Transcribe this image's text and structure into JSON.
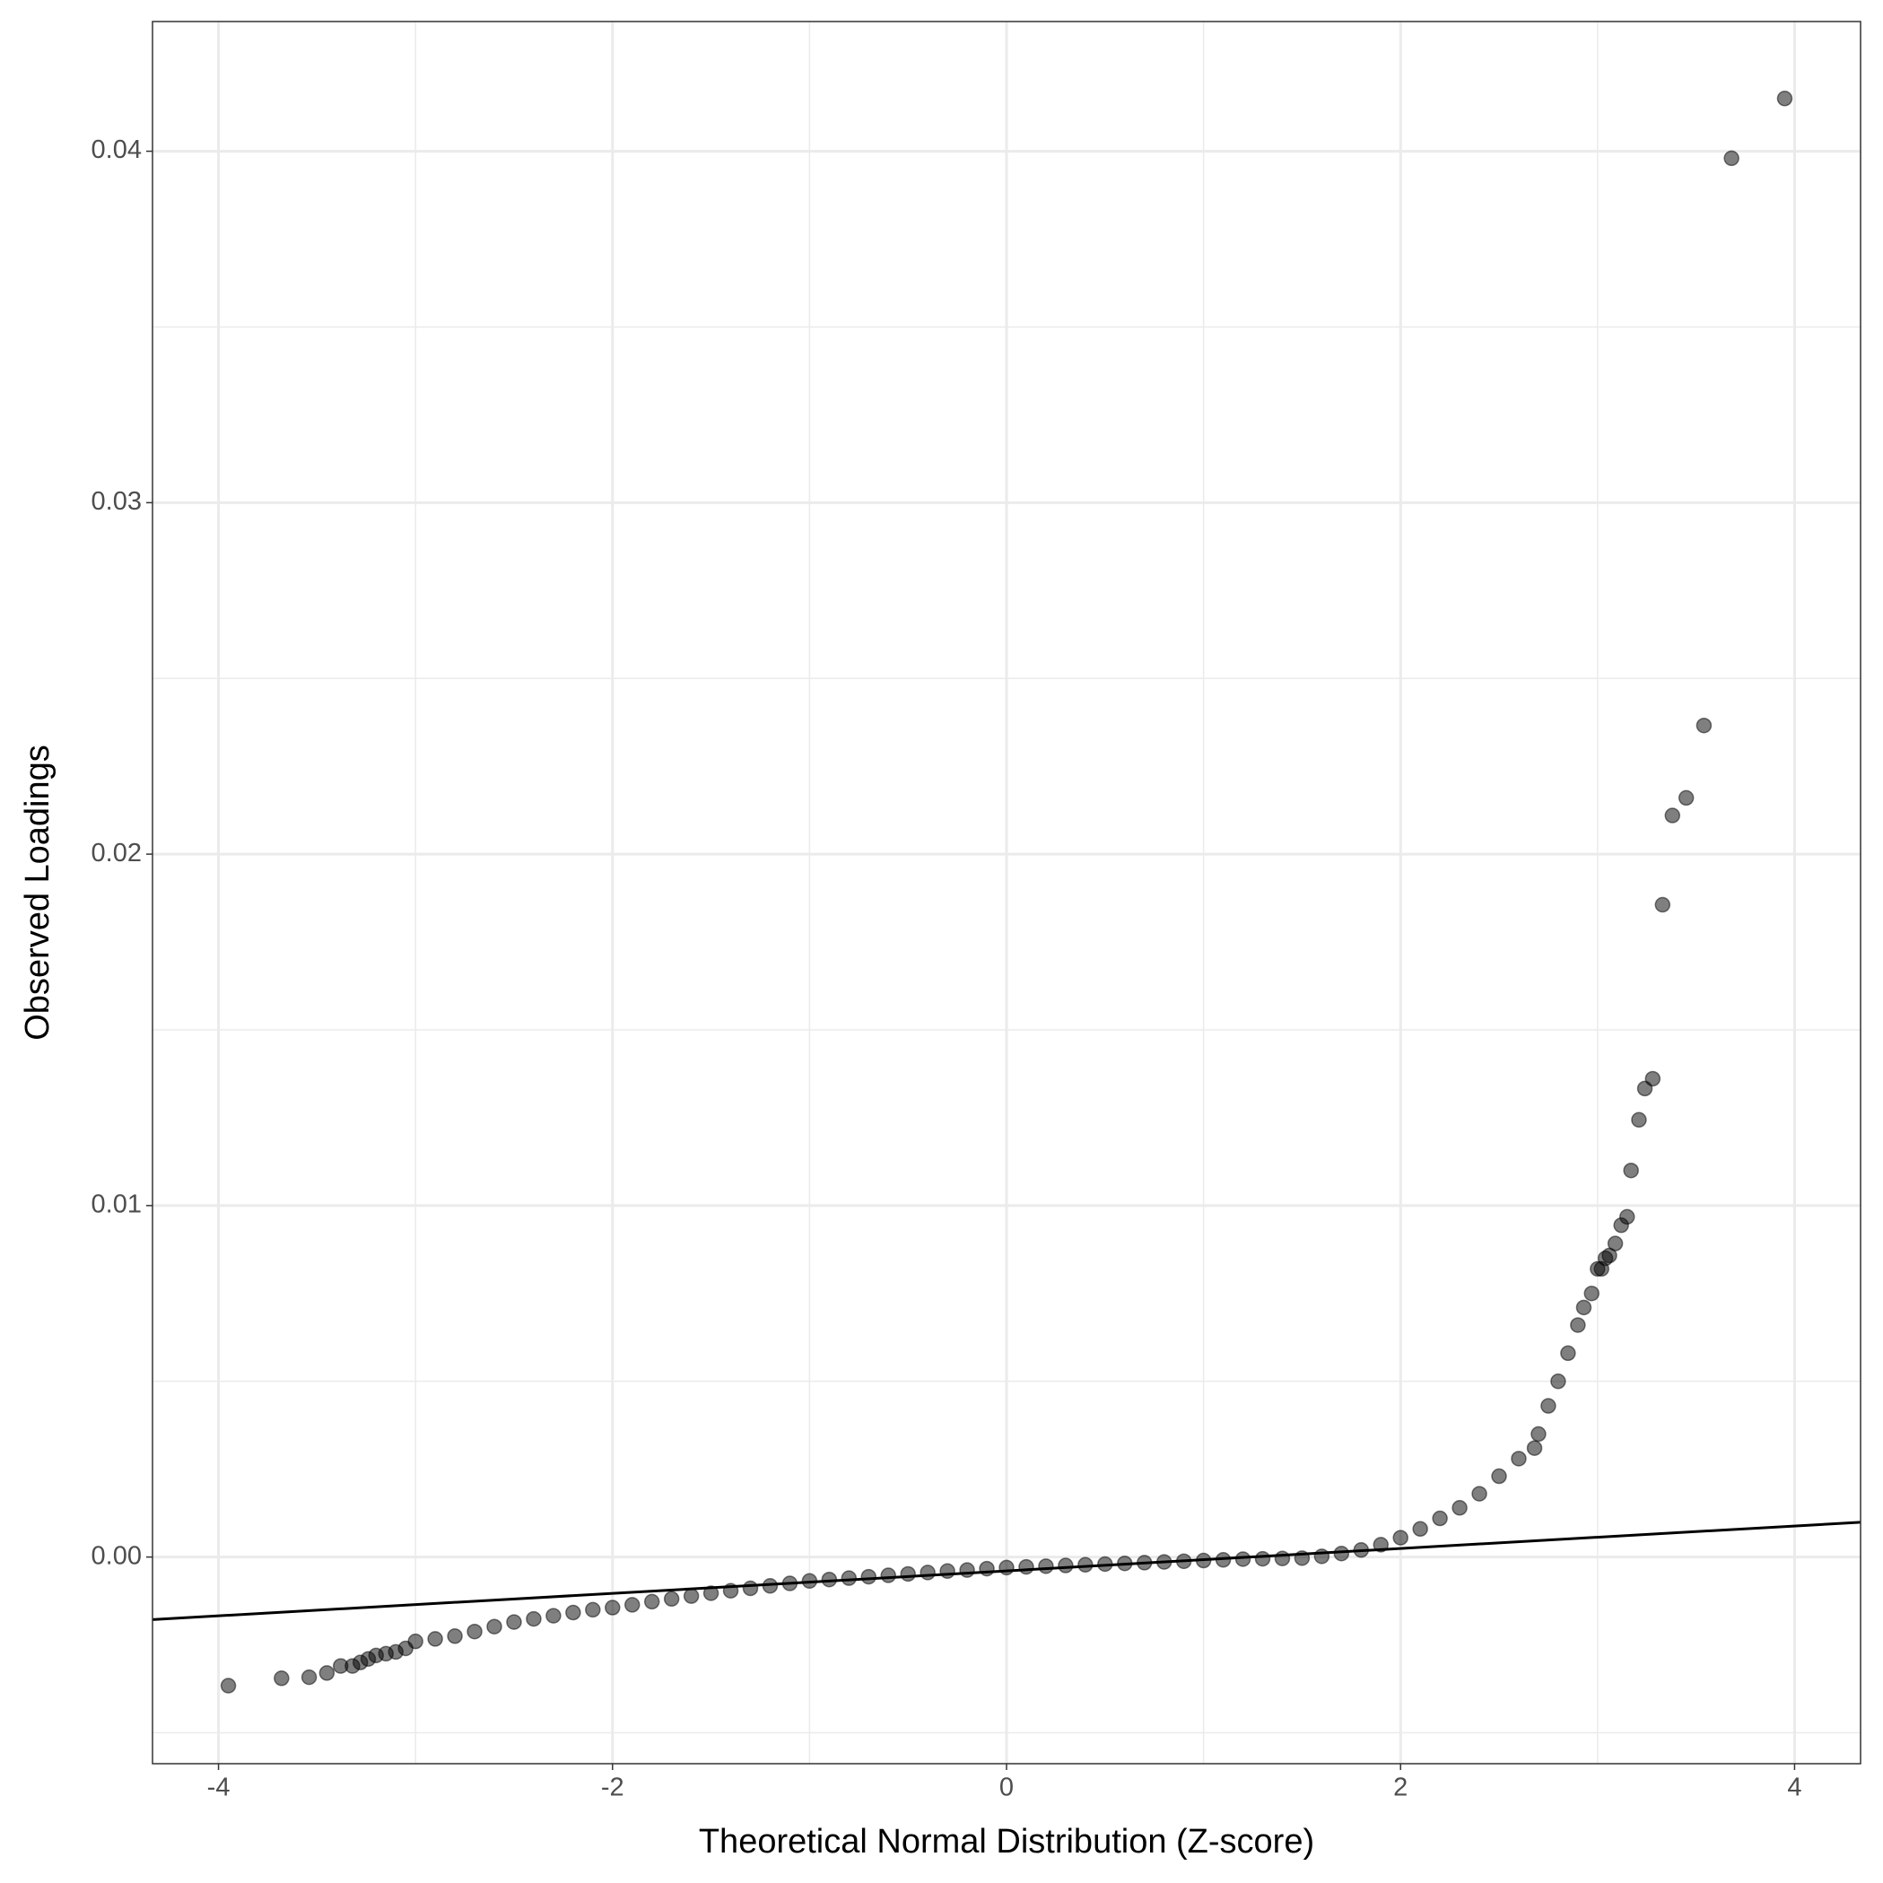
{
  "chart_data": {
    "type": "scatter",
    "x_label": "Theoretical Normal Distribution (Z-score)",
    "y_label": "Observed Loadings",
    "xlim": [
      -4.335,
      4.335
    ],
    "ylim": [
      -0.00588,
      0.04369
    ],
    "xticks": [
      -4,
      -2,
      0,
      2,
      4
    ],
    "yticks": [
      {
        "value": 0,
        "label": "0.00"
      },
      {
        "value": 0.01,
        "label": "0.01"
      },
      {
        "value": 0.02,
        "label": "0.02"
      },
      {
        "value": 0.03,
        "label": "0.03"
      },
      {
        "value": 0.04,
        "label": "0.04"
      }
    ],
    "grid": true,
    "minor_grid": true,
    "color": "#000000",
    "alpha": 0.5,
    "x": [
      -3.95,
      -3.68,
      -3.54,
      -3.45,
      -3.38,
      -3.32,
      -3.28,
      -3.24,
      -3.2,
      -3.15,
      -3.1,
      -3.05,
      -3.0,
      -2.9,
      -2.8,
      -2.7,
      -2.6,
      -2.5,
      -2.4,
      -2.3,
      -2.2,
      -2.1,
      -2.0,
      -1.9,
      -1.8,
      -1.7,
      -1.6,
      -1.5,
      -1.4,
      -1.3,
      -1.2,
      -1.1,
      -1.0,
      -0.9,
      -0.8,
      -0.7,
      -0.6,
      -0.5,
      -0.4,
      -0.3,
      -0.2,
      -0.1,
      0,
      0.1,
      0.2,
      0.3,
      0.4,
      0.5,
      0.6,
      0.7,
      0.8,
      0.9,
      1.0,
      1.1,
      1.2,
      1.3,
      1.4,
      1.5,
      1.6,
      1.7,
      1.8,
      1.9,
      2.0,
      2.1,
      2.2,
      2.3,
      2.4,
      2.5,
      2.6,
      2.68,
      2.7,
      2.75,
      2.8,
      2.85,
      2.9,
      2.93,
      2.97,
      3.0,
      3.02,
      3.04,
      3.06,
      3.09,
      3.12,
      3.15,
      3.17,
      3.21,
      3.24,
      3.28,
      3.33,
      3.38,
      3.45,
      3.54,
      3.68,
      3.95
    ],
    "y": [
      -0.00366,
      -0.00345,
      -0.00342,
      -0.0033,
      -0.0031,
      -0.0031,
      -0.003,
      -0.0029,
      -0.0028,
      -0.00275,
      -0.0027,
      -0.0026,
      -0.0024,
      -0.00233,
      -0.00225,
      -0.00212,
      -0.00198,
      -0.00185,
      -0.00176,
      -0.00167,
      -0.00158,
      -0.0015,
      -0.00144,
      -0.00136,
      -0.00127,
      -0.00119,
      -0.00111,
      -0.00103,
      -0.00096,
      -0.00089,
      -0.00082,
      -0.00075,
      -0.00068,
      -0.00064,
      -0.0006,
      -0.00056,
      -0.00052,
      -0.00048,
      -0.00044,
      -0.0004,
      -0.00037,
      -0.00033,
      -0.0003,
      -0.00028,
      -0.00026,
      -0.00024,
      -0.00022,
      -0.0002,
      -0.00018,
      -0.00016,
      -0.00014,
      -0.00012,
      -0.0001,
      -8e-05,
      -6e-05,
      -5e-05,
      -4e-05,
      -3e-05,
      2e-05,
      0.0001,
      0.0002,
      0.00035,
      0.00055,
      0.0008,
      0.0011,
      0.0014,
      0.0018,
      0.0023,
      0.0028,
      0.0031,
      0.0035,
      0.0043,
      0.005,
      0.0058,
      0.0066,
      0.0071,
      0.0075,
      0.0082,
      0.0082,
      0.0085,
      0.00858,
      0.00892,
      0.00944,
      0.00968,
      0.011,
      0.01244,
      0.01333,
      0.01361,
      0.01856,
      0.0211,
      0.0216,
      0.02366,
      0.0398,
      0.0415
    ],
    "reference_line": {
      "color": "#000000",
      "x": [
        -4.335,
        4.335
      ],
      "y": [
        -0.00178,
        0.00099
      ]
    }
  }
}
